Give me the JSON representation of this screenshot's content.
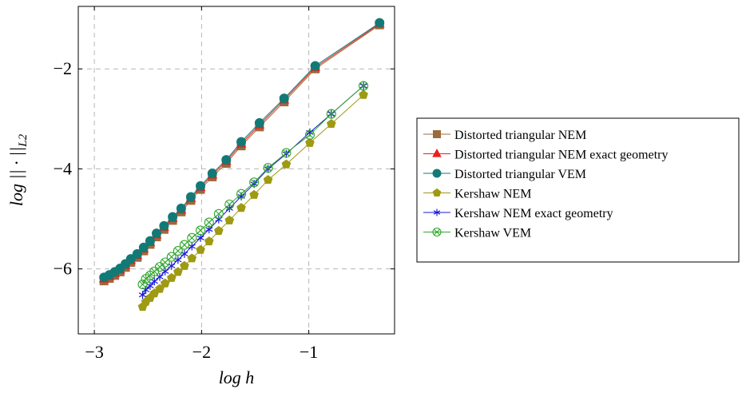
{
  "chart_data": {
    "type": "line",
    "xlabel": "log h",
    "ylabel": "log || · ||L2",
    "ylabel_parts": {
      "prefix": "log || · ||",
      "sub": "L2"
    },
    "xlim": [
      -3.15,
      -0.2
    ],
    "ylim": [
      -7.3,
      -0.75
    ],
    "xticks": [
      -3,
      -2,
      -1
    ],
    "yticks": [
      -6,
      -4,
      -2
    ],
    "xtick_labels": [
      "−3",
      "−2",
      "−1"
    ],
    "ytick_labels": [
      "−6",
      "−4",
      "−2"
    ],
    "grid": true,
    "legend_position": "right-outside",
    "series": [
      {
        "name": "Distorted triangular NEM",
        "color": "#9c6b3c",
        "marker": "square",
        "x": [
          -0.34,
          -0.94,
          -1.23,
          -1.46,
          -1.63,
          -1.77,
          -1.9,
          -2.01,
          -2.1,
          -2.19,
          -2.27,
          -2.35,
          -2.42,
          -2.48,
          -2.54,
          -2.6,
          -2.66,
          -2.71,
          -2.76,
          -2.81,
          -2.86,
          -2.91
        ],
        "y": [
          -1.12,
          -2.0,
          -2.66,
          -3.16,
          -3.54,
          -3.89,
          -4.16,
          -4.41,
          -4.63,
          -4.86,
          -5.03,
          -5.21,
          -5.36,
          -5.51,
          -5.64,
          -5.77,
          -5.87,
          -5.97,
          -6.06,
          -6.13,
          -6.19,
          -6.24
        ]
      },
      {
        "name": "Distorted triangular NEM exact geometry",
        "color": "#e8201f",
        "marker": "triangle",
        "x": [
          -0.34,
          -0.94,
          -1.23,
          -1.46,
          -1.63,
          -1.77,
          -1.9,
          -2.01,
          -2.1,
          -2.19,
          -2.27,
          -2.35,
          -2.42,
          -2.48,
          -2.54,
          -2.6,
          -2.66,
          -2.71,
          -2.76,
          -2.81,
          -2.86,
          -2.91
        ],
        "y": [
          -1.1,
          -1.97,
          -2.62,
          -3.12,
          -3.5,
          -3.85,
          -4.12,
          -4.37,
          -4.59,
          -4.82,
          -4.99,
          -5.17,
          -5.32,
          -5.47,
          -5.6,
          -5.73,
          -5.83,
          -5.93,
          -6.02,
          -6.09,
          -6.15,
          -6.2
        ]
      },
      {
        "name": "Distorted triangular VEM",
        "color": "#127a76",
        "marker": "circle",
        "x": [
          -0.34,
          -0.94,
          -1.23,
          -1.46,
          -1.63,
          -1.77,
          -1.9,
          -2.01,
          -2.1,
          -2.19,
          -2.27,
          -2.35,
          -2.42,
          -2.48,
          -2.54,
          -2.6,
          -2.66,
          -2.71,
          -2.76,
          -2.81,
          -2.86,
          -2.91
        ],
        "y": [
          -1.08,
          -1.94,
          -2.59,
          -3.08,
          -3.46,
          -3.82,
          -4.09,
          -4.34,
          -4.56,
          -4.79,
          -4.96,
          -5.14,
          -5.29,
          -5.44,
          -5.57,
          -5.7,
          -5.8,
          -5.9,
          -5.99,
          -6.06,
          -6.12,
          -6.17
        ]
      },
      {
        "name": "Kershaw NEM",
        "color": "#9e9a12",
        "marker": "pentagon",
        "x": [
          -0.49,
          -0.79,
          -0.99,
          -1.21,
          -1.38,
          -1.51,
          -1.63,
          -1.74,
          -1.84,
          -1.93,
          -2.01,
          -2.09,
          -2.16,
          -2.22,
          -2.28,
          -2.34,
          -2.39,
          -2.44,
          -2.48,
          -2.52,
          -2.55
        ],
        "y": [
          -2.52,
          -3.1,
          -3.48,
          -3.91,
          -4.22,
          -4.52,
          -4.78,
          -5.03,
          -5.24,
          -5.45,
          -5.62,
          -5.79,
          -5.94,
          -6.06,
          -6.18,
          -6.29,
          -6.4,
          -6.49,
          -6.58,
          -6.66,
          -6.76
        ]
      },
      {
        "name": "Kershaw NEM exact geometry",
        "color": "#1a1ad6",
        "marker": "asterisk",
        "x": [
          -0.49,
          -0.79,
          -0.99,
          -1.21,
          -1.38,
          -1.51,
          -1.63,
          -1.74,
          -1.84,
          -1.93,
          -2.01,
          -2.09,
          -2.16,
          -2.22,
          -2.28,
          -2.34,
          -2.39,
          -2.44,
          -2.48,
          -2.52,
          -2.55
        ],
        "y": [
          -2.34,
          -2.9,
          -3.27,
          -3.7,
          -4.0,
          -4.3,
          -4.55,
          -4.79,
          -5.01,
          -5.21,
          -5.38,
          -5.55,
          -5.7,
          -5.82,
          -5.94,
          -6.05,
          -6.16,
          -6.25,
          -6.34,
          -6.42,
          -6.52
        ]
      },
      {
        "name": "Kershaw VEM",
        "color": "#2fa72c",
        "marker": "circle-cross",
        "x": [
          -0.49,
          -0.79,
          -0.99,
          -1.21,
          -1.38,
          -1.51,
          -1.63,
          -1.74,
          -1.84,
          -1.93,
          -2.01,
          -2.09,
          -2.16,
          -2.22,
          -2.28,
          -2.34,
          -2.39,
          -2.44,
          -2.48,
          -2.52,
          -2.55
        ],
        "y": [
          -2.34,
          -2.9,
          -3.32,
          -3.68,
          -3.98,
          -4.27,
          -4.5,
          -4.71,
          -4.9,
          -5.07,
          -5.23,
          -5.38,
          -5.52,
          -5.64,
          -5.76,
          -5.87,
          -5.96,
          -6.05,
          -6.13,
          -6.2,
          -6.31
        ]
      }
    ]
  }
}
